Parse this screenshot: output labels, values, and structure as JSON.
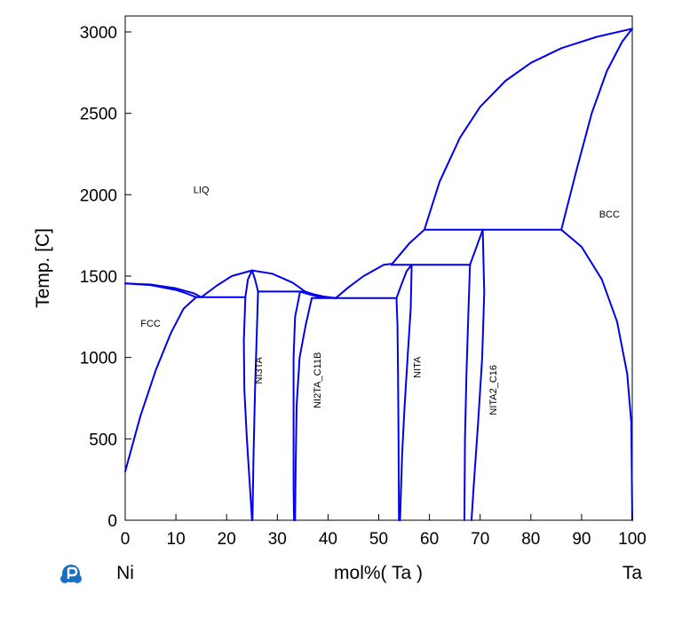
{
  "chart_data": {
    "type": "line",
    "title": "",
    "xlabel": "mol%(  Ta )",
    "ylabel": "Temp.  [C]",
    "x_left_label": "Ni",
    "x_right_label": "Ta",
    "xlim": [
      0,
      100
    ],
    "ylim": [
      0,
      3100
    ],
    "xticks": [
      0,
      10,
      20,
      30,
      40,
      50,
      60,
      70,
      80,
      90,
      100
    ],
    "yticks": [
      0,
      500,
      1000,
      1500,
      2000,
      2500,
      3000
    ],
    "line_color": "#0000ee",
    "regions": [
      {
        "label": "LIQ",
        "x": 15,
        "y": 2010,
        "rotate": false
      },
      {
        "label": "FCC",
        "x": 5,
        "y": 1190,
        "rotate": false
      },
      {
        "label": "BCC",
        "x": 95.5,
        "y": 1860,
        "rotate": false
      },
      {
        "label": "NI3TA",
        "x": 26.3,
        "y": 920,
        "rotate": true
      },
      {
        "label": "NI2TA_C11B",
        "x": 37.8,
        "y": 860,
        "rotate": true
      },
      {
        "label": "NITA",
        "x": 57.5,
        "y": 940,
        "rotate": true
      },
      {
        "label": "NITA2_C16",
        "x": 72.5,
        "y": 800,
        "rotate": true
      }
    ],
    "series": [
      {
        "points": [
          [
            0,
            1455
          ],
          [
            5,
            1448
          ],
          [
            10,
            1425
          ],
          [
            13.5,
            1395
          ],
          [
            15,
            1370
          ]
        ]
      },
      {
        "points": [
          [
            0,
            1455
          ],
          [
            5,
            1445
          ],
          [
            10,
            1415
          ],
          [
            12,
            1395
          ],
          [
            14,
            1370
          ]
        ]
      },
      {
        "points": [
          [
            0,
            300
          ],
          [
            3,
            640
          ],
          [
            6,
            920
          ],
          [
            9,
            1150
          ],
          [
            11.5,
            1300
          ],
          [
            14,
            1370
          ]
        ]
      },
      {
        "points": [
          [
            14,
            1370
          ],
          [
            23.7,
            1370
          ]
        ]
      },
      {
        "points": [
          [
            15,
            1370
          ],
          [
            18,
            1440
          ],
          [
            21,
            1500
          ],
          [
            25,
            1535
          ]
        ]
      },
      {
        "points": [
          [
            25,
            1535
          ],
          [
            29,
            1515
          ],
          [
            33,
            1460
          ],
          [
            35.5,
            1405
          ]
        ]
      },
      {
        "points": [
          [
            23.7,
            1370
          ],
          [
            24.2,
            1480
          ],
          [
            25,
            1535
          ],
          [
            25.6,
            1480
          ],
          [
            26.2,
            1405
          ]
        ]
      },
      {
        "points": [
          [
            23.7,
            1370
          ],
          [
            23.4,
            1100
          ],
          [
            23.5,
            800
          ],
          [
            24,
            500
          ],
          [
            24.6,
            200
          ],
          [
            25,
            0
          ]
        ]
      },
      {
        "points": [
          [
            26.2,
            1405
          ],
          [
            25.9,
            1100
          ],
          [
            25.6,
            800
          ],
          [
            25.3,
            400
          ],
          [
            25.1,
            0
          ]
        ]
      },
      {
        "points": [
          [
            26.2,
            1405
          ],
          [
            35.5,
            1405
          ]
        ]
      },
      {
        "points": [
          [
            34.5,
            1405
          ],
          [
            36,
            1390
          ],
          [
            38.5,
            1370
          ],
          [
            41.5,
            1365
          ]
        ]
      },
      {
        "points": [
          [
            35.5,
            1405
          ],
          [
            37,
            1390
          ],
          [
            39,
            1375
          ],
          [
            41.5,
            1365
          ]
        ]
      },
      {
        "points": [
          [
            34.5,
            1405
          ],
          [
            33.5,
            1250
          ],
          [
            33.2,
            1000
          ],
          [
            33.2,
            600
          ],
          [
            33.2,
            200
          ],
          [
            33.3,
            0
          ]
        ]
      },
      {
        "points": [
          [
            36.8,
            1365
          ],
          [
            35.6,
            1200
          ],
          [
            34.4,
            1000
          ],
          [
            33.8,
            700
          ],
          [
            33.6,
            300
          ],
          [
            33.5,
            0
          ]
        ]
      },
      {
        "points": [
          [
            36.8,
            1365
          ],
          [
            53.5,
            1365
          ]
        ]
      },
      {
        "points": [
          [
            41.5,
            1365
          ],
          [
            44,
            1430
          ],
          [
            47,
            1500
          ],
          [
            51,
            1570
          ],
          [
            52.5,
            1575
          ]
        ]
      },
      {
        "points": [
          [
            53.5,
            1365
          ],
          [
            53.7,
            1200
          ],
          [
            53.8,
            900
          ],
          [
            53.9,
            500
          ],
          [
            54,
            0
          ]
        ]
      },
      {
        "points": [
          [
            53.5,
            1365
          ],
          [
            54.5,
            1450
          ],
          [
            55.5,
            1530
          ],
          [
            56.5,
            1570
          ]
        ]
      },
      {
        "points": [
          [
            56.5,
            1570
          ],
          [
            56.3,
            1300
          ],
          [
            55.7,
            1000
          ],
          [
            55.1,
            700
          ],
          [
            54.6,
            400
          ],
          [
            54.2,
            0
          ]
        ]
      },
      {
        "points": [
          [
            52.5,
            1570
          ],
          [
            68,
            1570
          ]
        ]
      },
      {
        "points": [
          [
            52.5,
            1570
          ],
          [
            56,
            1700
          ],
          [
            59,
            1785
          ]
        ]
      },
      {
        "points": [
          [
            68,
            1570
          ],
          [
            70.5,
            1785
          ]
        ]
      },
      {
        "points": [
          [
            68,
            1570
          ],
          [
            67.7,
            1300
          ],
          [
            67.3,
            900
          ],
          [
            67,
            500
          ],
          [
            66.9,
            0
          ]
        ]
      },
      {
        "points": [
          [
            70.5,
            1785
          ],
          [
            70.8,
            1400
          ],
          [
            70.4,
            1000
          ],
          [
            69.6,
            600
          ],
          [
            68.7,
            200
          ],
          [
            68.3,
            0
          ]
        ]
      },
      {
        "points": [
          [
            59,
            1785
          ],
          [
            86,
            1785
          ]
        ]
      },
      {
        "points": [
          [
            59,
            1785
          ],
          [
            62,
            2080
          ],
          [
            66,
            2350
          ],
          [
            70,
            2540
          ],
          [
            75,
            2700
          ],
          [
            80,
            2810
          ],
          [
            86,
            2900
          ],
          [
            93,
            2970
          ],
          [
            100,
            3020
          ]
        ]
      },
      {
        "points": [
          [
            86,
            1785
          ],
          [
            89,
            2150
          ],
          [
            92,
            2500
          ],
          [
            95,
            2760
          ],
          [
            98,
            2940
          ],
          [
            100,
            3020
          ]
        ]
      },
      {
        "points": [
          [
            86,
            1785
          ],
          [
            90,
            1680
          ],
          [
            94,
            1480
          ],
          [
            97,
            1220
          ],
          [
            99,
            900
          ],
          [
            99.8,
            600
          ],
          [
            100,
            0
          ]
        ]
      }
    ]
  }
}
